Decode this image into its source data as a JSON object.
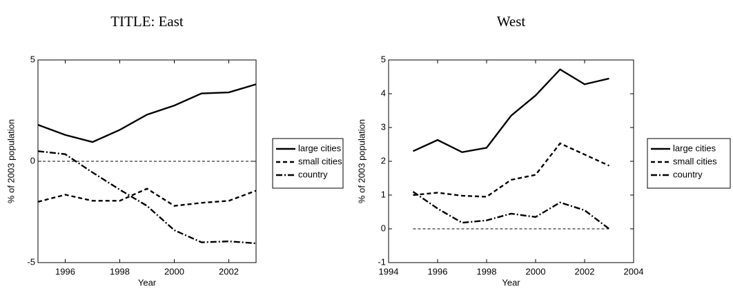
{
  "chart_data": [
    {
      "type": "line",
      "title": "TITLE: East",
      "xlabel": "Year",
      "ylabel": "% of 2003 population",
      "x": [
        1995,
        1996,
        1997,
        1998,
        1999,
        2000,
        2001,
        2002,
        2003
      ],
      "xlim": [
        1995,
        2003
      ],
      "xticks": [
        1996,
        1998,
        2000,
        2002
      ],
      "ylim": [
        -5,
        5
      ],
      "yticks": [
        -5,
        0,
        5
      ],
      "hline": 0,
      "legend": "right",
      "series": [
        {
          "name": "large cities",
          "color": "#000000",
          "style": "solid",
          "values": [
            1.8,
            1.3,
            0.95,
            1.55,
            2.3,
            2.75,
            3.35,
            3.4,
            3.8
          ]
        },
        {
          "name": "small cities",
          "color": "#000000",
          "style": "dashed",
          "values": [
            -2.0,
            -1.65,
            -1.95,
            -1.95,
            -1.35,
            -2.2,
            -2.05,
            -1.95,
            -1.45
          ]
        },
        {
          "name": "country",
          "color": "#000000",
          "style": "dashdot",
          "values": [
            0.5,
            0.35,
            -0.55,
            -1.4,
            -2.2,
            -3.4,
            -4.0,
            -3.95,
            -4.05
          ]
        }
      ]
    },
    {
      "type": "line",
      "title": "West",
      "xlabel": "Year",
      "ylabel": "% of 2003 population",
      "x": [
        1995,
        1996,
        1997,
        1998,
        1999,
        2000,
        2001,
        2002,
        2003
      ],
      "xlim": [
        1994,
        2004
      ],
      "xticks": [
        1994,
        1996,
        1998,
        2000,
        2002,
        2004
      ],
      "ylim": [
        -1,
        5
      ],
      "yticks": [
        -1,
        0,
        1,
        2,
        3,
        4,
        5
      ],
      "hline": 0,
      "legend": "right",
      "series": [
        {
          "name": "large cities",
          "color": "#000000",
          "style": "solid",
          "values": [
            2.3,
            2.63,
            2.27,
            2.4,
            3.35,
            3.95,
            4.72,
            4.28,
            4.45
          ]
        },
        {
          "name": "small cities",
          "color": "#000000",
          "style": "dashed",
          "values": [
            1.0,
            1.07,
            0.98,
            0.95,
            1.45,
            1.6,
            2.53,
            2.2,
            1.87
          ]
        },
        {
          "name": "country",
          "color": "#000000",
          "style": "dashdot",
          "values": [
            1.1,
            0.6,
            0.18,
            0.25,
            0.45,
            0.35,
            0.78,
            0.55,
            0.0
          ]
        }
      ]
    }
  ]
}
